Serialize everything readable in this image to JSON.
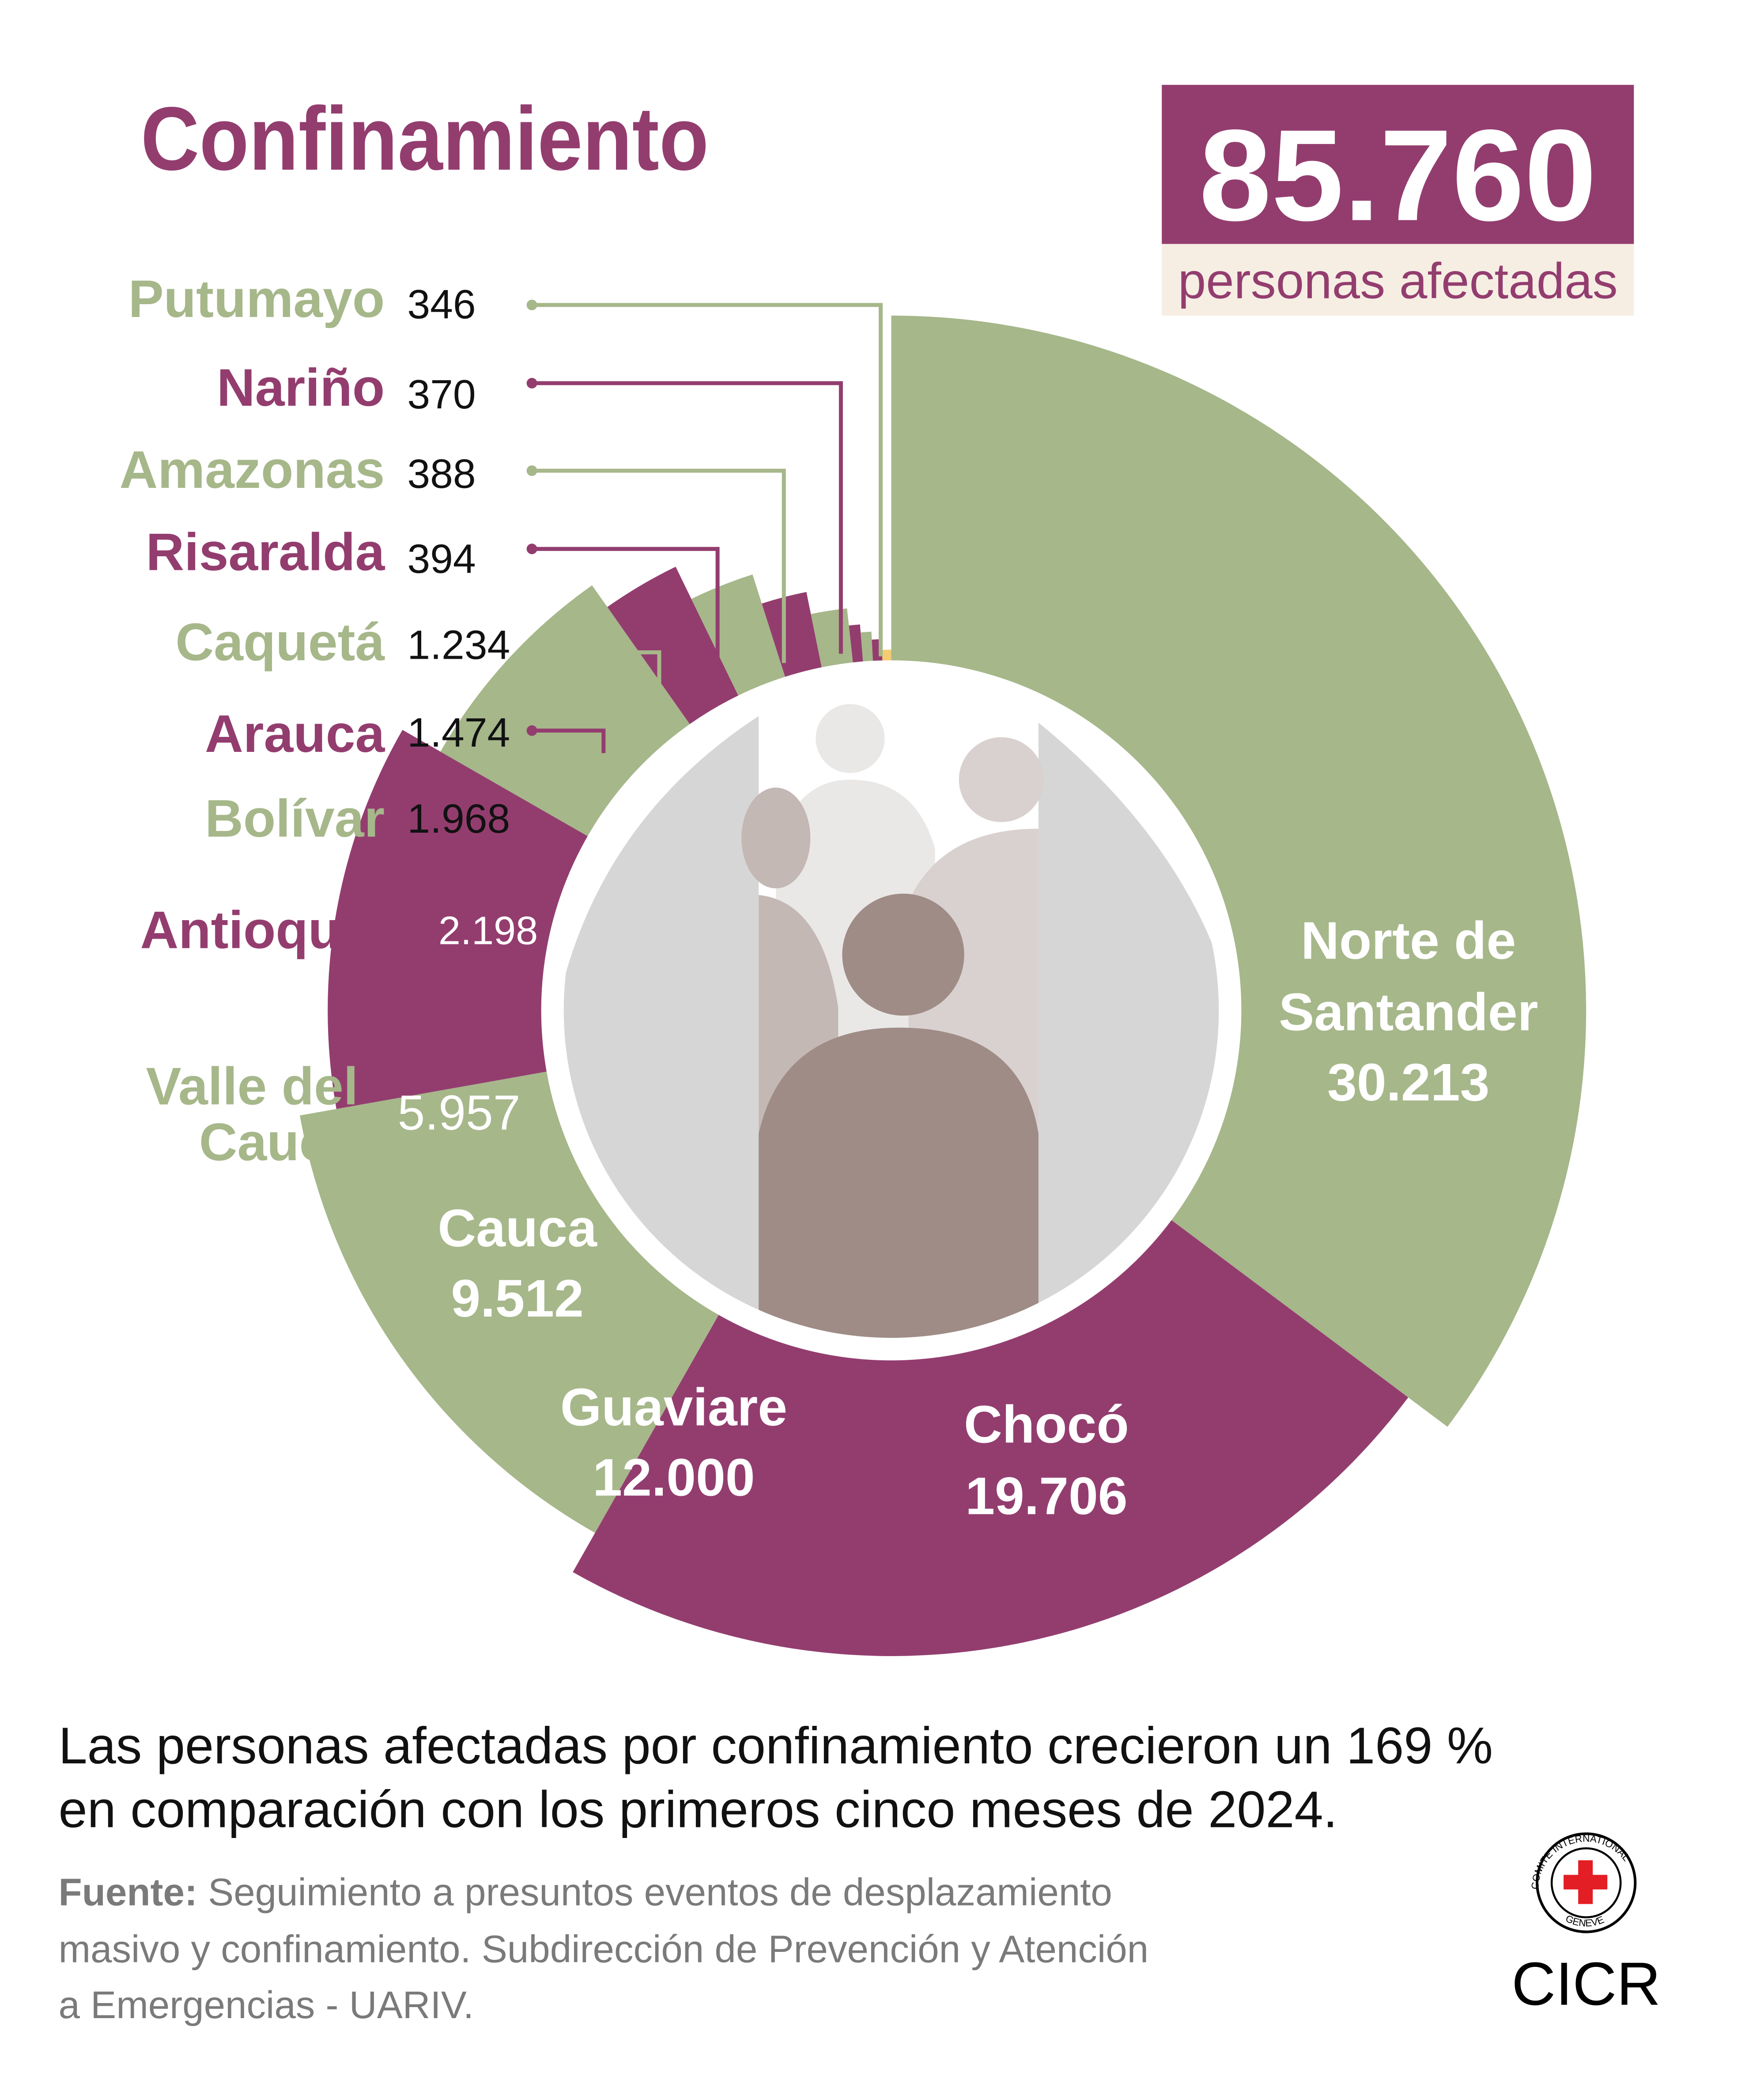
{
  "title": "Confinamiento",
  "total": {
    "value": "85.760",
    "label": "personas afectadas"
  },
  "colors": {
    "purple": "#933d6f",
    "green": "#a6b78a",
    "yellow": "#f3cc74",
    "beige": "#f6eee3"
  },
  "chart_data": {
    "type": "pie",
    "variant": "polar-area donut",
    "total": 85760,
    "categories": [
      "Norte de Santander",
      "Chocó",
      "Guaviare",
      "Cauca",
      "Valle del Cauca",
      "Antioquia",
      "Bolívar",
      "Arauca",
      "Caquetá",
      "Risaralda",
      "Amazonas",
      "Nariño",
      "Putumayo"
    ],
    "values": [
      30213,
      19706,
      12000,
      9512,
      5957,
      2198,
      1968,
      1474,
      1234,
      394,
      388,
      370,
      346
    ],
    "value_labels": [
      "30.213",
      "19.706",
      "12.000",
      "9.512",
      "5.957",
      "2.198",
      "1.968",
      "1.474",
      "1.234",
      "394",
      "388",
      "370",
      "346"
    ],
    "segment_colors": [
      "#a6b78a",
      "#933d6f",
      "#a6b78a",
      "#933d6f",
      "#a6b78a",
      "#933d6f",
      "#a6b78a",
      "#933d6f",
      "#a6b78a",
      "#933d6f",
      "#a6b78a",
      "#933d6f",
      "#f3cc74"
    ],
    "label_lines": {
      "norte": [
        "Norte de",
        "Santander"
      ],
      "valle": [
        "Valle del",
        "Cauca"
      ]
    }
  },
  "footnote": {
    "line1": "Las personas afectadas por confinamiento crecieron un 169 %",
    "line2": "en comparación con los primeros cinco meses de 2024.",
    "source_label": "Fuente:",
    "source_line1": " Seguimiento a presuntos eventos de desplazamiento",
    "source_line2": "masivo y confinamiento. Subdirección de Prevención y Atención",
    "source_line3": "a Emergencias - UARIV."
  },
  "logo": {
    "text": "CICR",
    "ring_top": "COMITE INTERNATIONAL",
    "ring_bottom": "GENEVE"
  }
}
